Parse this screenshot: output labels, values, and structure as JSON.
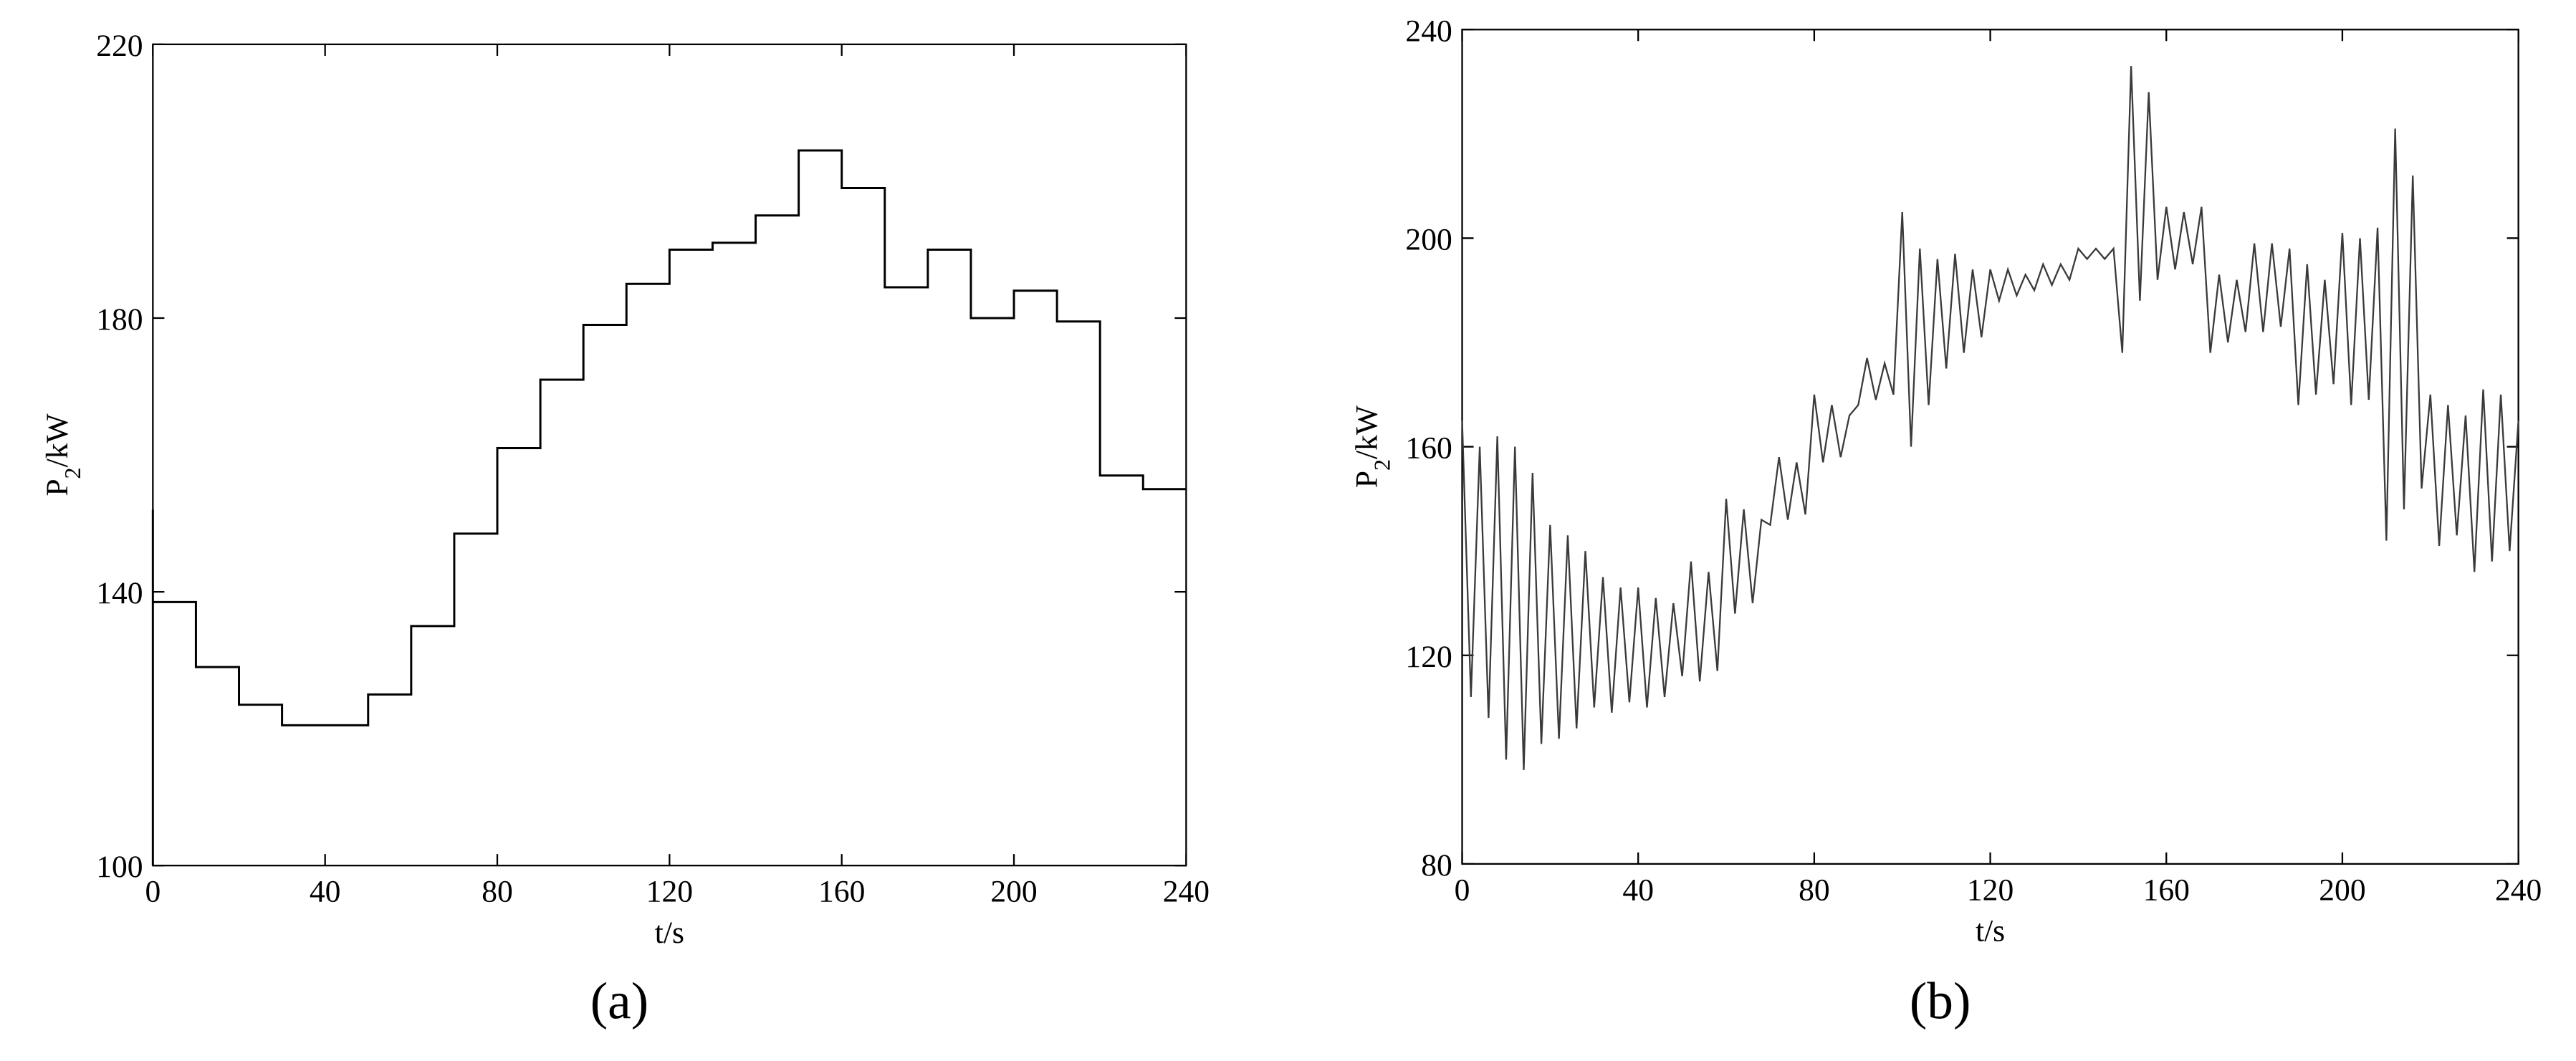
{
  "chart_data": [
    {
      "type": "line",
      "caption": "(a)",
      "xlabel": "t/s",
      "ylabel": [
        "P",
        "2",
        "/kW"
      ],
      "xlim": [
        0,
        240
      ],
      "xticks": [
        0,
        40,
        80,
        120,
        160,
        200,
        240
      ],
      "ylim": [
        100,
        220
      ],
      "yticks": [
        100,
        140,
        180,
        220
      ],
      "color": "#000000",
      "x": [
        0,
        0,
        0,
        10,
        10,
        20,
        20,
        30,
        30,
        50,
        50,
        60,
        60,
        70,
        70,
        80,
        80,
        90,
        90,
        100,
        100,
        110,
        110,
        120,
        120,
        130,
        130,
        140,
        140,
        150,
        150,
        160,
        160,
        170,
        170,
        180,
        180,
        190,
        190,
        200,
        200,
        210,
        210,
        220,
        220,
        230,
        230,
        240
      ],
      "values": [
        100,
        152,
        138.5,
        138.5,
        129,
        129,
        123.5,
        123.5,
        120.5,
        120.5,
        125,
        125,
        135,
        135,
        148.5,
        148.5,
        161,
        161,
        171,
        171,
        179,
        179,
        185,
        185,
        190,
        190,
        191,
        191,
        195,
        195,
        204.5,
        204.5,
        199,
        199,
        184.5,
        184.5,
        190,
        190,
        180,
        180,
        184,
        184,
        179.5,
        179.5,
        157,
        157,
        155,
        155
      ]
    },
    {
      "type": "line",
      "caption": "(b)",
      "xlabel": "t/s",
      "ylabel": [
        "P",
        "2",
        "/kW"
      ],
      "xlim": [
        0,
        240
      ],
      "xticks": [
        0,
        40,
        80,
        120,
        160,
        200,
        240
      ],
      "ylim": [
        80,
        240
      ],
      "yticks": [
        80,
        120,
        160,
        200,
        240
      ],
      "color": "#3a3a3a",
      "x": [
        0,
        2,
        4,
        6,
        8,
        10,
        12,
        14,
        16,
        18,
        20,
        22,
        24,
        26,
        28,
        30,
        32,
        34,
        36,
        38,
        40,
        42,
        44,
        46,
        48,
        50,
        52,
        54,
        56,
        58,
        60,
        62,
        64,
        66,
        68,
        70,
        72,
        74,
        76,
        78,
        80,
        82,
        84,
        86,
        88,
        90,
        92,
        94,
        96,
        98,
        100,
        102,
        104,
        106,
        108,
        110,
        112,
        114,
        116,
        118,
        120,
        122,
        124,
        126,
        128,
        130,
        132,
        134,
        136,
        138,
        140,
        142,
        144,
        146,
        148,
        150,
        152,
        154,
        156,
        158,
        160,
        162,
        164,
        166,
        168,
        170,
        172,
        174,
        176,
        178,
        180,
        182,
        184,
        186,
        188,
        190,
        192,
        194,
        196,
        198,
        200,
        202,
        204,
        206,
        208,
        210,
        212,
        214,
        216,
        218,
        220,
        222,
        224,
        226,
        228,
        230,
        232,
        234,
        236,
        238,
        240
      ],
      "values": [
        165,
        112,
        160,
        108,
        162,
        100,
        160,
        98,
        155,
        103,
        145,
        104,
        143,
        106,
        140,
        110,
        135,
        109,
        133,
        111,
        133,
        110,
        131,
        112,
        130,
        116,
        138,
        115,
        136,
        117,
        150,
        128,
        148,
        130,
        146,
        145,
        158,
        146,
        157,
        147,
        170,
        157,
        168,
        158,
        166,
        168,
        177,
        169,
        176,
        170,
        205,
        160,
        198,
        168,
        196,
        175,
        197,
        178,
        194,
        181,
        194,
        188,
        194,
        189,
        193,
        190,
        195,
        191,
        195,
        192,
        198,
        196,
        198,
        196,
        198,
        178,
        233,
        188,
        228,
        192,
        206,
        194,
        205,
        195,
        206,
        178,
        193,
        180,
        192,
        182,
        199,
        182,
        199,
        183,
        198,
        168,
        195,
        170,
        192,
        172,
        201,
        168,
        200,
        169,
        202,
        142,
        221,
        148,
        212,
        152,
        170,
        141,
        168,
        143,
        166,
        136,
        171,
        138,
        170,
        140,
        165
      ]
    }
  ]
}
